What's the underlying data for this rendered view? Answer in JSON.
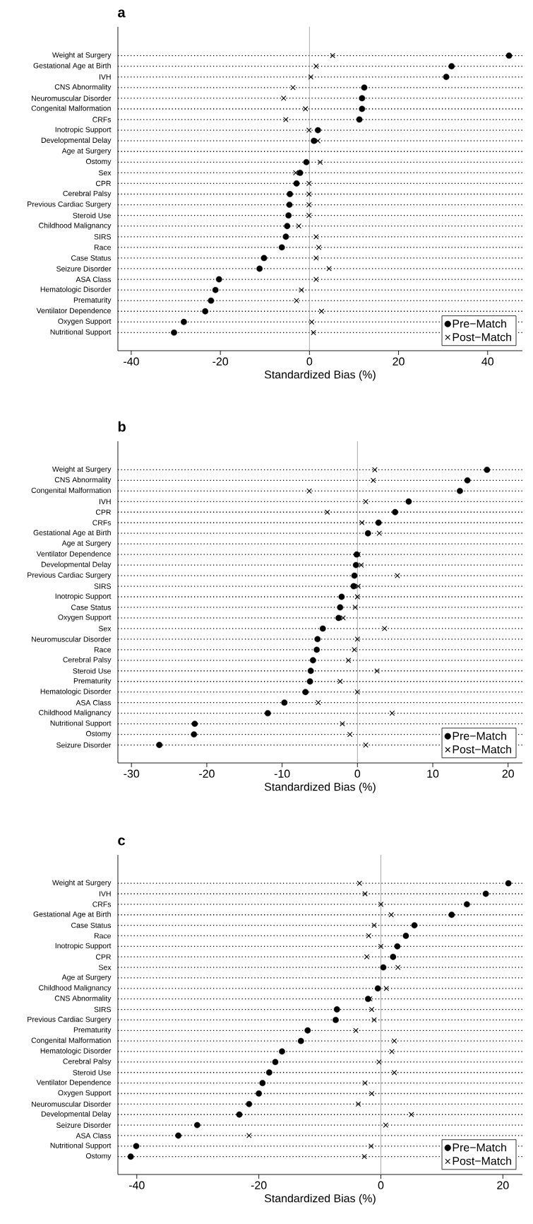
{
  "chart_data": [
    {
      "type": "scatter",
      "orientation": "horizontal",
      "title": "a",
      "xlabel": "Standardized Bias (%)",
      "categories": [
        "Weight at Surgery",
        "Gestational Age at Birth",
        "IVH",
        "CNS Abnormality",
        "Neuromuscular Disorder",
        "Congenital Malformation",
        "CRFs",
        "Inotropic Support",
        "Developmental Delay",
        "Age at Surgery",
        "Ostomy",
        "Sex",
        "CPR",
        "Cerebral Palsy",
        "Previous Cardiac Surgery",
        "Steroid Use",
        "Childhood Malignancy",
        "SIRS",
        "Race",
        "Case Status",
        "Seizure Disorder",
        "ASA Class",
        "Hematologic Disorder",
        "Prematurity",
        "Ventilator Dependence",
        "Oxygen Support",
        "Nutritional Support"
      ],
      "series": [
        {
          "name": "Pre−Match",
          "color": "#000000",
          "marker": "circle",
          "values": [
            44.8,
            31.9,
            30.7,
            12.3,
            11.8,
            11.8,
            11.2,
            1.9,
            1.0,
            null,
            -0.7,
            -2.1,
            -2.9,
            -4.4,
            -4.5,
            -4.7,
            -5.0,
            -5.3,
            -6.2,
            -10.2,
            -11.2,
            -20.3,
            -21.1,
            -22.1,
            -23.4,
            -28.2,
            -30.4
          ]
        },
        {
          "name": "Post−Match",
          "color": "#000000",
          "marker": "cross",
          "values": [
            5.2,
            1.5,
            0.3,
            -3.7,
            -5.8,
            -0.9,
            -5.3,
            -0.1,
            1.9,
            null,
            2.4,
            -3.1,
            -0.1,
            -0.1,
            -0.1,
            -0.1,
            -2.4,
            1.5,
            2.1,
            1.5,
            4.4,
            1.5,
            -1.8,
            -2.9,
            2.7,
            0.5,
            0.9
          ]
        }
      ],
      "xlim": [
        -43,
        47.8
      ],
      "xticks": [
        -40,
        -20,
        0,
        20,
        40
      ],
      "ref_lines": [
        {
          "axis": "x",
          "value": 0,
          "color": "#a0a0a0"
        }
      ],
      "grid": "y",
      "legend": "bottom right"
    },
    {
      "type": "scatter",
      "orientation": "horizontal",
      "title": "b",
      "xlabel": "Standardized Bias (%)",
      "categories": [
        "Weight at Surgery",
        "CNS Abnormality",
        "Congenital Malformation",
        "IVH",
        "CPR",
        "CRFs",
        "Gestational Age at Birth",
        "Age at Surgery",
        "Ventilator Dependence",
        "Developmental Delay",
        "Previous Cardiac Surgery",
        "SIRS",
        "Inotropic Support",
        "Case Status",
        "Oxygen Support",
        "Sex",
        "Neuromuscular Disorder",
        "Race",
        "Cerebral Palsy",
        "Steroid Use",
        "Prematurity",
        "Hematologic Disorder",
        "ASA Class",
        "Childhood Malignancy",
        "Nutritional Support",
        "Ostomy",
        "Seizure Disorder"
      ],
      "series": [
        {
          "name": "Pre−Match",
          "color": "#000000",
          "marker": "circle",
          "values": [
            17.2,
            14.6,
            13.6,
            6.8,
            5.0,
            2.8,
            1.4,
            null,
            -0.1,
            -0.2,
            -0.4,
            -0.5,
            -2.1,
            -2.3,
            -2.5,
            -4.6,
            -5.3,
            -5.4,
            -5.9,
            -6.2,
            -6.3,
            -6.9,
            -9.7,
            -11.9,
            -21.6,
            -21.7,
            -26.3
          ]
        },
        {
          "name": "Post−Match",
          "color": "#000000",
          "marker": "cross",
          "values": [
            2.3,
            2.1,
            -6.4,
            1.1,
            -4.0,
            0.6,
            2.9,
            null,
            0.1,
            0.5,
            5.3,
            0.1,
            0.0,
            -0.3,
            -1.9,
            3.6,
            0.0,
            -0.4,
            -1.2,
            2.6,
            -2.3,
            0.0,
            -5.2,
            4.6,
            -2.0,
            -1.0,
            1.1
          ]
        }
      ],
      "xlim": [
        -31.8,
        21.9
      ],
      "xticks": [
        -30,
        -20,
        -10,
        0,
        10,
        20
      ],
      "ref_lines": [
        {
          "axis": "x",
          "value": 0,
          "color": "#a0a0a0"
        }
      ],
      "grid": "y",
      "legend": "bottom right"
    },
    {
      "type": "scatter",
      "orientation": "horizontal",
      "title": "c",
      "xlabel": "Standardized Bias (%)",
      "categories": [
        "Weight at Surgery",
        "IVH",
        "CRFs",
        "Gestational Age at Birth",
        "Case Status",
        "Race",
        "Inotropic Support",
        "CPR",
        "Sex",
        "Age at Surgery",
        "Childhood Malignancy",
        "CNS Abnormality",
        "SIRS",
        "Previous Cardiac Surgery",
        "Prematurity",
        "Congenital Malformation",
        "Hematologic Disorder",
        "Cerebral Palsy",
        "Steroid Use",
        "Ventilator Dependence",
        "Oxygen Support",
        "Neuromuscular Disorder",
        "Developmental Delay",
        "Seizure Disorder",
        "ASA Class",
        "Nutritional Support",
        "Ostomy"
      ],
      "series": [
        {
          "name": "Pre−Match",
          "color": "#000000",
          "marker": "circle",
          "values": [
            20.9,
            17.2,
            14.1,
            11.6,
            5.5,
            4.1,
            2.7,
            2.0,
            0.4,
            null,
            -0.5,
            -2.1,
            -7.2,
            -7.4,
            -12.0,
            -13.1,
            -16.2,
            -17.3,
            -18.3,
            -19.4,
            -20.0,
            -21.6,
            -23.2,
            -30.1,
            -33.2,
            -40.1,
            -41.0
          ]
        },
        {
          "name": "Post−Match",
          "color": "#000000",
          "marker": "cross",
          "values": [
            -3.5,
            -2.6,
            0.0,
            1.7,
            -1.1,
            -2.0,
            0.0,
            -2.3,
            2.8,
            null,
            0.9,
            -1.8,
            -1.5,
            -1.1,
            -4.1,
            2.2,
            1.8,
            -0.3,
            2.2,
            -2.6,
            -1.5,
            -3.7,
            5.0,
            0.8,
            -21.6,
            -1.6,
            -2.7
          ]
        }
      ],
      "xlim": [
        -43.1,
        23.2
      ],
      "xticks": [
        -40,
        -20,
        0,
        20
      ],
      "ref_lines": [
        {
          "axis": "x",
          "value": 0,
          "color": "#a0a0a0"
        }
      ],
      "grid": "y",
      "legend": "bottom right"
    }
  ]
}
